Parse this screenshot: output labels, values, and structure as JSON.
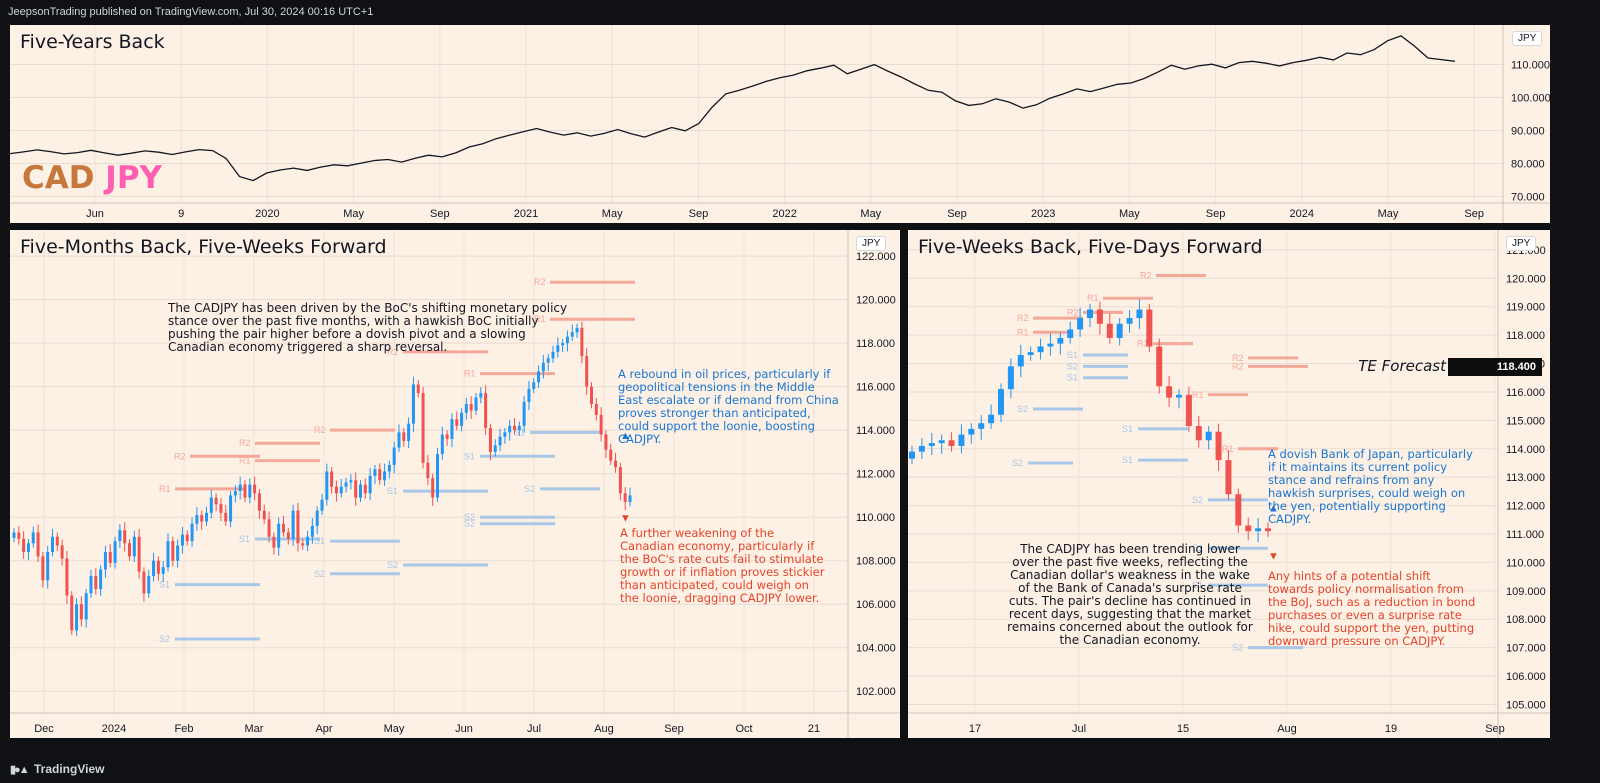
{
  "header": {
    "text": "JeepsonTrading published on TradingView.com, Jul 30, 2024 00:16 UTC+1"
  },
  "footer": {
    "brand": "TradingView",
    "logo_icon": "tradingview-logo-icon"
  },
  "colors": {
    "up": "#2196f3",
    "down": "#ef5350",
    "resistance": "#f4a89a",
    "support": "#a9c8e8",
    "panel_bg": "#fdf0e5"
  },
  "panel_top": {
    "title": "Five-Years Back",
    "symbol": {
      "part1": "CAD",
      "part2": "JPY"
    },
    "unit": "JPY",
    "chart_data": {
      "type": "line",
      "ylim": [
        68,
        122
      ],
      "yticks": [
        70,
        80,
        90,
        100,
        110
      ],
      "ytick_labels": [
        "70.000",
        "80.000",
        "90.000",
        "100.000",
        "110.000"
      ],
      "xtick_labels": [
        "Jun",
        "9",
        "2020",
        "May",
        "Sep",
        "2021",
        "May",
        "Sep",
        "2022",
        "May",
        "Sep",
        "2023",
        "May",
        "Sep",
        "2024",
        "May",
        "Sep"
      ],
      "close": [
        83.0,
        83.5,
        84.1,
        83.6,
        82.9,
        83.3,
        84.0,
        83.2,
        82.5,
        83.1,
        83.8,
        83.4,
        82.7,
        83.5,
        84.2,
        83.9,
        81.5,
        76.0,
        74.8,
        77.1,
        78.0,
        78.6,
        77.9,
        78.9,
        79.6,
        79.3,
        80.1,
        80.9,
        81.2,
        80.4,
        81.6,
        82.5,
        82.0,
        83.2,
        85.0,
        86.0,
        87.5,
        88.6,
        89.6,
        90.6,
        89.5,
        88.6,
        89.3,
        88.3,
        89.1,
        90.3,
        89.0,
        88.0,
        89.5,
        90.9,
        89.9,
        92.1,
        97.1,
        101.1,
        102.2,
        103.5,
        104.9,
        106.0,
        106.8,
        108.1,
        108.9,
        109.8,
        107.2,
        108.6,
        110.0,
        108.0,
        106.2,
        104.1,
        102.2,
        101.6,
        99.0,
        97.6,
        98.1,
        99.6,
        98.6,
        96.8,
        97.8,
        99.8,
        101.1,
        102.6,
        101.8,
        102.9,
        104.0,
        104.4,
        105.8,
        107.7,
        109.8,
        108.6,
        109.6,
        110.1,
        109.0,
        110.6,
        111.0,
        110.4,
        109.6,
        110.6,
        111.3,
        112.2,
        111.4,
        113.5,
        113.0,
        114.5,
        117.2,
        118.7,
        115.6,
        112.0,
        111.5,
        111.0
      ]
    }
  },
  "panel_left": {
    "title": "Five-Months Back, Five-Weeks Forward",
    "unit": "JPY",
    "chart_data": {
      "type": "candlestick",
      "ylim": [
        101,
        123.2
      ],
      "yticks": [
        102,
        104,
        106,
        108,
        110,
        112,
        114,
        116,
        118,
        120,
        122
      ],
      "ytick_labels": [
        "102.000",
        "104.000",
        "106.000",
        "108.000",
        "110.000",
        "112.000",
        "114.000",
        "116.000",
        "118.000",
        "120.000",
        "122.000"
      ],
      "xtick_labels": [
        "Dec",
        "2024",
        "Feb",
        "Mar",
        "Apr",
        "May",
        "Jun",
        "Jul",
        "Aug",
        "Sep",
        "Oct",
        "21"
      ],
      "close": [
        109.3,
        109.0,
        108.4,
        108.8,
        109.3,
        108.2,
        107.1,
        108.4,
        109.1,
        108.7,
        108.1,
        106.4,
        104.8,
        106.0,
        105.3,
        106.5,
        107.3,
        106.7,
        107.6,
        108.4,
        107.9,
        108.9,
        109.4,
        108.8,
        108.2,
        109.1,
        107.5,
        106.5,
        107.3,
        108.0,
        107.4,
        107.7,
        108.9,
        108.0,
        108.7,
        109.2,
        108.9,
        109.7,
        110.1,
        109.8,
        110.2,
        110.9,
        110.6,
        110.2,
        109.8,
        111.0,
        111.2,
        111.5,
        110.9,
        111.5,
        111.1,
        110.3,
        109.9,
        109.1,
        108.6,
        109.7,
        109.3,
        109.0,
        110.3,
        108.8,
        108.7,
        109.1,
        109.6,
        110.3,
        110.8,
        112.1,
        111.4,
        111.1,
        111.4,
        111.6,
        111.7,
        110.9,
        111.5,
        111.1,
        111.9,
        112.2,
        111.7,
        112.1,
        112.4,
        113.2,
        113.9,
        113.5,
        114.3,
        116.1,
        115.7,
        112.5,
        111.8,
        110.9,
        112.9,
        113.8,
        113.6,
        114.5,
        114.2,
        114.8,
        115.2,
        114.9,
        115.5,
        115.7,
        114.1,
        113.0,
        113.3,
        113.7,
        113.9,
        114.2,
        114.0,
        114.2,
        115.3,
        115.9,
        116.2,
        116.7,
        117.1,
        117.3,
        117.6,
        117.9,
        118.0,
        118.3,
        118.5,
        118.7,
        117.4,
        116.0,
        115.2,
        114.7,
        113.8,
        113.1,
        112.6,
        112.3,
        111.1,
        110.7,
        111.0
      ]
    },
    "levels": [
      {
        "label": "R2",
        "price": 120.8,
        "type": "r"
      },
      {
        "label": "R1",
        "price": 119.1,
        "type": "r"
      },
      {
        "label": "R2",
        "price": 117.6,
        "type": "r"
      },
      {
        "label": "R1",
        "price": 116.6,
        "type": "r"
      },
      {
        "label": "R2",
        "price": 114.0,
        "type": "r"
      },
      {
        "label": "R1",
        "price": 112.6,
        "type": "r"
      },
      {
        "label": "R2",
        "price": 113.4,
        "type": "r"
      },
      {
        "label": "R2",
        "price": 112.8,
        "type": "r"
      },
      {
        "label": "R1",
        "price": 111.3,
        "type": "r"
      },
      {
        "label": "S1",
        "price": 113.9,
        "type": "s"
      },
      {
        "label": "S1",
        "price": 112.8,
        "type": "s"
      },
      {
        "label": "S2",
        "price": 111.3,
        "type": "s"
      },
      {
        "label": "S2",
        "price": 110.0,
        "type": "s"
      },
      {
        "label": "S1",
        "price": 111.2,
        "type": "s"
      },
      {
        "label": "S2",
        "price": 109.7,
        "type": "s"
      },
      {
        "label": "S1",
        "price": 109.0,
        "type": "s"
      },
      {
        "label": "S2",
        "price": 107.8,
        "type": "s"
      },
      {
        "label": "S1",
        "price": 108.9,
        "type": "s"
      },
      {
        "label": "S2",
        "price": 107.4,
        "type": "s"
      },
      {
        "label": "S1",
        "price": 106.9,
        "type": "s"
      },
      {
        "label": "S2",
        "price": 104.4,
        "type": "s"
      }
    ],
    "notes": {
      "main": "The CADJPY has been driven by the BoC's shifting monetary policy stance over the past five months, with a hawkish BoC initially pushing the pair higher before a dovish pivot and a slowing Canadian economy triggered a sharp reversal.",
      "bull": " A rebound in oil prices, particularly if geopolitical tensions in the Middle East escalate or if demand from China proves stronger than anticipated, could support the loonie, boosting CADJPY.",
      "bear": "A further weakening of the Canadian economy, particularly if the BoC's rate cuts fail to stimulate growth or if inflation proves stickier than anticipated, could weigh on the loonie, dragging CADJPY lower."
    }
  },
  "panel_right": {
    "title": "Five-Weeks Back, Five-Days Forward",
    "unit": "JPY",
    "forecast": {
      "label": "TE Forecast",
      "value": "118.400"
    },
    "chart_data": {
      "type": "candlestick",
      "ylim": [
        104.7,
        121.7
      ],
      "yticks": [
        105,
        106,
        107,
        108,
        109,
        110,
        111,
        112,
        113,
        114,
        115,
        116,
        117,
        118,
        119,
        120,
        121
      ],
      "ytick_labels": [
        "105.000",
        "106.000",
        "107.000",
        "108.000",
        "109.000",
        "110.000",
        "111.000",
        "112.000",
        "113.000",
        "114.000",
        "115.000",
        "116.000",
        "117.000",
        "118.000",
        "119.000",
        "120.000",
        "121.000"
      ],
      "xtick_labels": [
        "17",
        "Jul",
        "15",
        "Aug",
        "19",
        "Sep"
      ],
      "close": [
        113.9,
        114.1,
        114.2,
        114.3,
        114.1,
        114.5,
        114.7,
        114.9,
        115.2,
        116.1,
        116.9,
        117.3,
        117.4,
        117.6,
        117.7,
        117.9,
        118.2,
        118.6,
        118.9,
        118.4,
        117.9,
        118.4,
        118.6,
        118.9,
        117.6,
        116.2,
        115.8,
        115.9,
        114.8,
        114.3,
        114.6,
        113.6,
        112.4,
        111.3,
        111.1,
        111.2,
        111.1
      ]
    },
    "levels": [
      {
        "label": "R2",
        "price": 120.1,
        "type": "r"
      },
      {
        "label": "R1",
        "price": 119.3,
        "type": "r"
      },
      {
        "label": "R2",
        "price": 118.8,
        "type": "r"
      },
      {
        "label": "R1",
        "price": 118.1,
        "type": "r"
      },
      {
        "label": "R2",
        "price": 118.6,
        "type": "r"
      },
      {
        "label": "R1",
        "price": 117.7,
        "type": "r"
      },
      {
        "label": "R2",
        "price": 117.2,
        "type": "r"
      },
      {
        "label": "R2",
        "price": 116.9,
        "type": "r"
      },
      {
        "label": "R1",
        "price": 115.9,
        "type": "r"
      },
      {
        "label": "R1",
        "price": 114.0,
        "type": "r"
      },
      {
        "label": "S1",
        "price": 117.3,
        "type": "s"
      },
      {
        "label": "S2",
        "price": 116.9,
        "type": "s"
      },
      {
        "label": "S1",
        "price": 116.5,
        "type": "s"
      },
      {
        "label": "S2",
        "price": 115.4,
        "type": "s"
      },
      {
        "label": "S1",
        "price": 114.7,
        "type": "s"
      },
      {
        "label": "S2",
        "price": 113.5,
        "type": "s"
      },
      {
        "label": "S1",
        "price": 113.6,
        "type": "s"
      },
      {
        "label": "S2",
        "price": 112.2,
        "type": "s"
      },
      {
        "label": "S1",
        "price": 110.5,
        "type": "s"
      },
      {
        "label": "S1",
        "price": 109.2,
        "type": "s"
      },
      {
        "label": "S2",
        "price": 107.0,
        "type": "s"
      }
    ],
    "notes": {
      "main": "The CADJPY has been trending lower over the past five weeks, reflecting the Canadian dollar's weakness in the wake of the Bank of Canada's surprise rate cuts. The pair's decline has continued in recent days, suggesting that the market remains concerned about the outlook for the Canadian economy.",
      "bull": "A dovish Bank of Japan, particularly if it maintains its current policy stance and refrains from any hawkish surprises, could weigh on the yen, potentially supporting CADJPY.",
      "bear": "Any hints of a potential shift towards policy normalisation from the BoJ, such as a reduction in bond purchases or even a surprise rate hike, could support the yen, putting downward pressure on CADJPY."
    }
  }
}
